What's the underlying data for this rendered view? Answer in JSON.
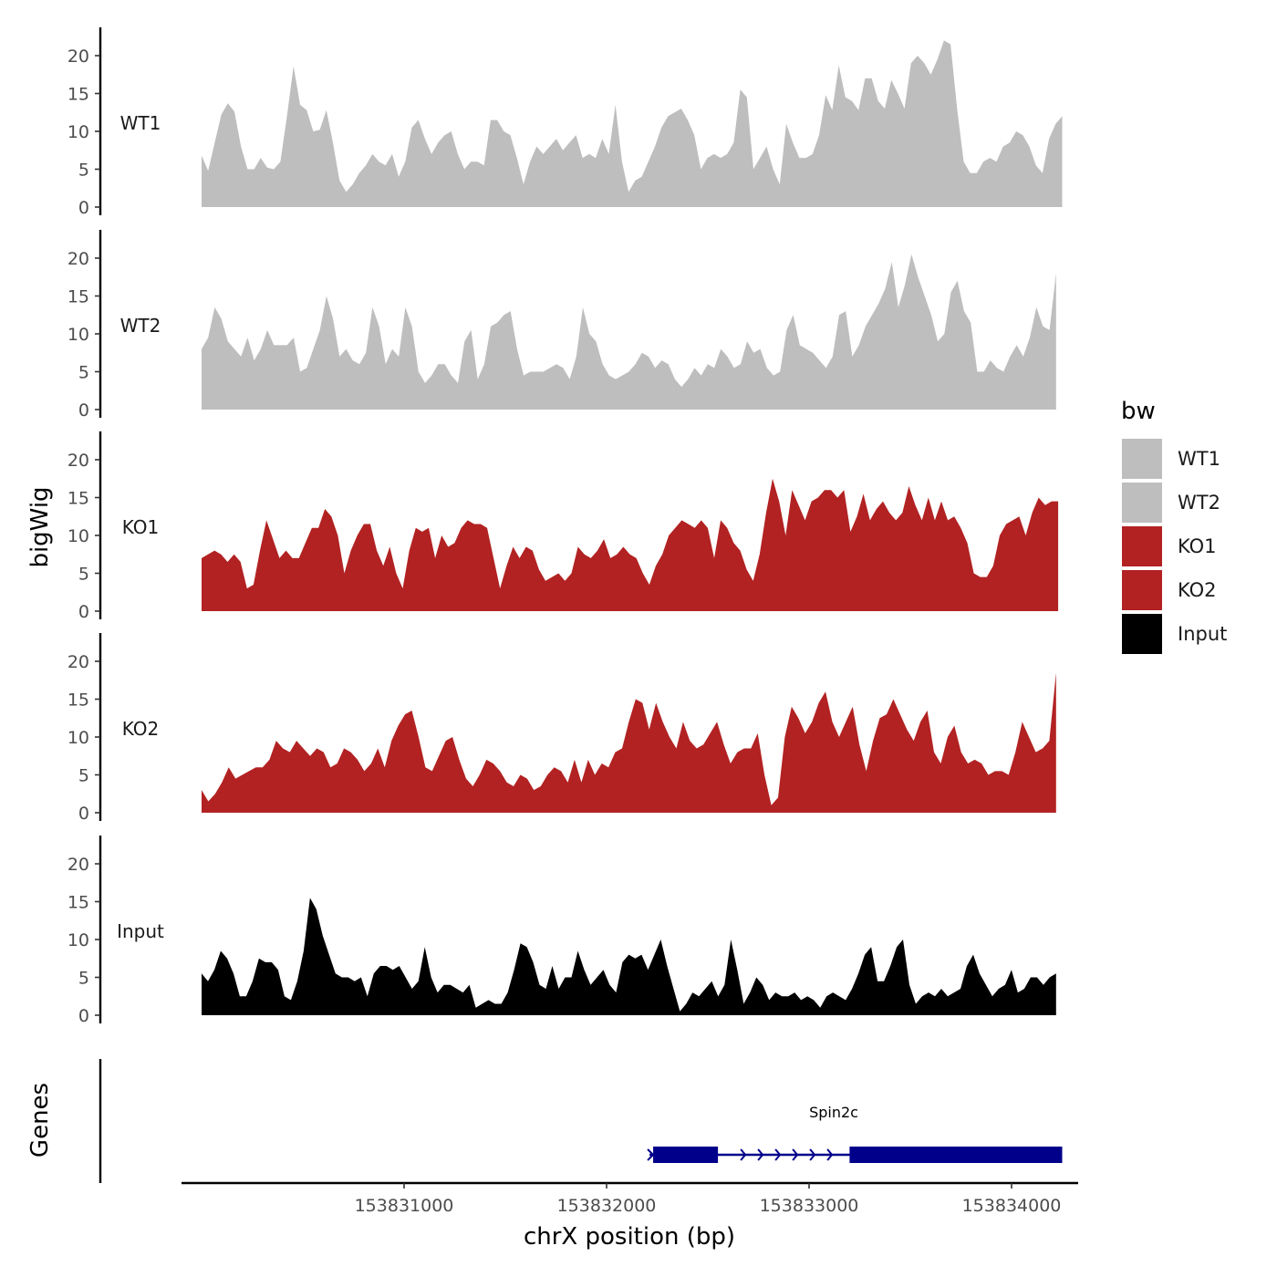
{
  "chart_data": {
    "type": "area",
    "facets": "stacked genome tracks",
    "y_axis_title": "bigWig",
    "x_axis_title": "chrX position (bp)",
    "x_range": [
      153829800,
      153834300
    ],
    "x_ticks": [
      153831000,
      153832000,
      153833000,
      153834000
    ],
    "x_tick_labels": [
      "153831000",
      "153832000",
      "153833000",
      "153834000"
    ],
    "ylim": [
      0,
      24
    ],
    "y_ticks": [
      0,
      5,
      10,
      15,
      20
    ],
    "y_tick_labels": [
      "0",
      "5",
      "10",
      "15",
      "20"
    ],
    "legend": {
      "title": "bw",
      "entries": [
        {
          "label": "WT1",
          "color": "#bebebe"
        },
        {
          "label": "WT2",
          "color": "#bebebe"
        },
        {
          "label": "KO1",
          "color": "#b22222"
        },
        {
          "label": "KO2",
          "color": "#b22222"
        },
        {
          "label": "Input",
          "color": "#000000"
        }
      ]
    },
    "series": [
      {
        "name": "WT1",
        "color": "#bebebe",
        "x_start": 153830000,
        "x_end": 153834250,
        "values": [
          6.8,
          4.8,
          8.5,
          12.2,
          13.7,
          12.6,
          8.0,
          5.0,
          5.0,
          6.5,
          5.2,
          5.0,
          6.0,
          12.0,
          18.6,
          13.5,
          12.8,
          10.0,
          10.2,
          12.8,
          8.5,
          3.5,
          2.0,
          3.0,
          4.5,
          5.5,
          7.0,
          6.0,
          5.5,
          7.0,
          4.0,
          6.0,
          10.5,
          11.5,
          9.0,
          7.0,
          8.5,
          9.5,
          10.0,
          7.0,
          5.0,
          6.0,
          6.0,
          5.5,
          11.5,
          11.5,
          10.0,
          9.5,
          6.5,
          3.0,
          6.0,
          8.0,
          7.0,
          8.0,
          9.0,
          7.5,
          8.5,
          9.5,
          6.5,
          7.0,
          6.5,
          9.0,
          7.0,
          13.5,
          6.0,
          2.0,
          3.5,
          4.0,
          6.0,
          8.0,
          10.5,
          12.0,
          12.5,
          13.0,
          11.5,
          9.5,
          5.0,
          6.5,
          7.0,
          6.5,
          7.0,
          8.5,
          15.5,
          14.5,
          5.0,
          6.5,
          8.0,
          5.0,
          3.0,
          11.0,
          8.5,
          6.5,
          6.5,
          7.0,
          9.5,
          14.8,
          12.8,
          18.7,
          14.5,
          14.0,
          12.8,
          17.0,
          17.0,
          14.0,
          13.0,
          16.8,
          15.0,
          13.0,
          19.0,
          20.0,
          19.0,
          17.5,
          19.5,
          22.0,
          21.5,
          13.0,
          6.0,
          4.5,
          4.5,
          6.0,
          6.5,
          6.0,
          8.0,
          8.5,
          10.0,
          9.5,
          8.0,
          5.5,
          4.5,
          9.0,
          11.0,
          12.0
        ]
      },
      {
        "name": "WT2",
        "color": "#bebebe",
        "x_start": 153830000,
        "x_end": 153834220,
        "values": [
          8.0,
          9.5,
          13.5,
          12.0,
          9.0,
          8.0,
          7.0,
          9.5,
          6.5,
          8.0,
          10.5,
          8.5,
          8.5,
          8.5,
          9.5,
          5.0,
          5.5,
          8.0,
          10.5,
          15.0,
          12.0,
          7.0,
          8.0,
          6.5,
          6.0,
          7.5,
          13.5,
          11.0,
          6.0,
          8.0,
          7.0,
          13.5,
          11.0,
          5.0,
          3.5,
          4.5,
          6.0,
          6.0,
          4.5,
          3.5,
          9.0,
          10.5,
          4.0,
          6.0,
          11.0,
          11.5,
          12.5,
          13.0,
          8.0,
          4.5,
          5.0,
          5.0,
          5.0,
          5.5,
          6.0,
          5.5,
          4.0,
          7.0,
          13.5,
          10.0,
          9.0,
          6.0,
          4.5,
          4.0,
          4.5,
          5.0,
          6.0,
          7.5,
          7.0,
          5.5,
          6.5,
          6.0,
          4.0,
          3.0,
          4.0,
          5.5,
          4.5,
          6.0,
          5.5,
          8.0,
          7.0,
          5.5,
          6.0,
          9.0,
          7.5,
          8.0,
          5.5,
          4.5,
          5.0,
          10.5,
          12.5,
          8.5,
          8.0,
          7.5,
          6.5,
          5.5,
          7.0,
          12.5,
          13.0,
          7.0,
          8.5,
          11.0,
          12.5,
          14.0,
          16.0,
          19.5,
          13.5,
          16.5,
          20.5,
          17.5,
          15.0,
          12.5,
          9.0,
          10.0,
          15.5,
          17.0,
          13.0,
          11.5,
          5.0,
          5.0,
          6.5,
          5.5,
          5.0,
          7.0,
          8.5,
          7.0,
          9.5,
          13.5,
          11.0,
          10.5,
          18.0
        ]
      },
      {
        "name": "KO1",
        "color": "#b22222",
        "x_start": 153830000,
        "x_end": 153834230,
        "values": [
          7.0,
          7.5,
          8.0,
          7.5,
          6.5,
          7.5,
          6.5,
          3.0,
          3.5,
          8.0,
          12.0,
          9.5,
          7.0,
          8.0,
          7.0,
          7.0,
          9.0,
          11.0,
          11.0,
          13.5,
          12.5,
          10.0,
          5.0,
          8.0,
          10.0,
          11.5,
          11.5,
          8.0,
          6.0,
          8.5,
          5.0,
          3.0,
          8.0,
          11.0,
          10.5,
          11.0,
          7.0,
          10.0,
          8.5,
          9.0,
          11.0,
          12.0,
          11.5,
          11.5,
          11.0,
          7.0,
          3.0,
          6.0,
          8.5,
          7.0,
          8.5,
          8.0,
          5.5,
          4.0,
          4.5,
          5.0,
          4.0,
          5.0,
          8.5,
          7.5,
          7.0,
          8.0,
          9.5,
          7.0,
          7.5,
          8.5,
          7.5,
          7.0,
          5.0,
          3.5,
          6.0,
          7.5,
          10.0,
          11.0,
          12.0,
          11.5,
          11.0,
          12.0,
          11.0,
          7.0,
          12.0,
          11.0,
          9.0,
          8.0,
          5.5,
          4.0,
          7.5,
          13.0,
          17.5,
          14.5,
          10.0,
          16.0,
          14.0,
          12.0,
          14.5,
          15.0,
          16.0,
          16.0,
          15.0,
          16.0,
          10.5,
          12.5,
          15.5,
          12.0,
          13.5,
          14.5,
          13.0,
          12.0,
          13.0,
          16.5,
          14.0,
          12.0,
          15.0,
          12.0,
          14.5,
          12.0,
          12.5,
          11.0,
          9.0,
          5.0,
          4.5,
          4.5,
          6.0,
          10.0,
          11.5,
          12.0,
          12.5,
          10.0,
          13.0,
          15.0,
          14.0,
          14.5,
          14.5
        ]
      },
      {
        "name": "KO2",
        "color": "#b22222",
        "x_start": 153830000,
        "x_end": 153834220,
        "values": [
          3.0,
          1.5,
          2.5,
          4.0,
          6.0,
          4.5,
          5.0,
          5.5,
          6.0,
          6.0,
          7.0,
          9.5,
          8.5,
          8.0,
          9.5,
          8.5,
          7.5,
          8.5,
          8.0,
          6.0,
          6.5,
          8.5,
          8.0,
          7.0,
          5.5,
          6.5,
          8.5,
          6.0,
          9.5,
          11.5,
          13.0,
          13.5,
          10.0,
          6.0,
          5.5,
          7.5,
          9.5,
          10.0,
          7.0,
          4.5,
          3.5,
          5.0,
          7.0,
          6.5,
          5.5,
          4.0,
          3.5,
          5.0,
          4.5,
          3.0,
          3.5,
          5.0,
          6.0,
          5.5,
          4.0,
          7.0,
          4.0,
          7.0,
          5.0,
          6.5,
          6.0,
          8.0,
          8.5,
          12.0,
          15.0,
          14.5,
          11.0,
          14.5,
          12.0,
          10.0,
          8.5,
          12.0,
          9.5,
          8.5,
          9.0,
          10.5,
          12.0,
          9.0,
          6.5,
          8.0,
          8.5,
          8.5,
          10.5,
          5.0,
          1.0,
          2.0,
          10.0,
          14.0,
          12.5,
          10.5,
          12.0,
          14.5,
          16.0,
          12.0,
          10.0,
          12.0,
          14.0,
          9.0,
          5.5,
          9.5,
          12.5,
          13.0,
          15.0,
          13.0,
          11.0,
          9.5,
          12.0,
          13.5,
          8.0,
          6.5,
          10.0,
          11.5,
          8.0,
          6.5,
          7.0,
          6.5,
          5.0,
          5.5,
          5.5,
          5.0,
          8.0,
          12.0,
          10.0,
          8.0,
          8.5,
          9.5,
          18.5
        ]
      },
      {
        "name": "Input",
        "color": "#000000",
        "x_start": 153830000,
        "x_end": 153834220,
        "values": [
          5.5,
          4.5,
          6.0,
          8.5,
          7.5,
          5.5,
          2.5,
          2.5,
          4.5,
          7.5,
          7.0,
          7.0,
          6.0,
          2.5,
          2.0,
          4.5,
          8.5,
          15.5,
          14.0,
          10.5,
          8.0,
          5.5,
          5.0,
          5.0,
          4.5,
          5.0,
          2.5,
          5.5,
          6.5,
          6.5,
          6.0,
          6.5,
          5.0,
          3.5,
          4.5,
          9.0,
          5.0,
          3.0,
          4.0,
          4.0,
          3.5,
          3.0,
          4.0,
          1.0,
          1.5,
          2.0,
          1.5,
          1.5,
          3.0,
          6.0,
          9.5,
          9.0,
          7.0,
          4.0,
          3.5,
          6.5,
          3.5,
          5.0,
          5.0,
          8.5,
          6.0,
          4.0,
          5.0,
          6.0,
          4.0,
          3.0,
          7.0,
          8.0,
          7.5,
          8.0,
          6.0,
          8.0,
          10.0,
          6.5,
          3.5,
          0.5,
          1.5,
          3.0,
          2.5,
          3.5,
          4.5,
          2.5,
          4.0,
          10.0,
          6.0,
          1.5,
          3.0,
          5.0,
          4.0,
          2.0,
          3.0,
          2.5,
          2.5,
          3.0,
          2.0,
          2.5,
          2.0,
          1.0,
          2.5,
          3.0,
          2.5,
          2.0,
          3.5,
          5.5,
          8.0,
          9.0,
          4.5,
          4.5,
          6.5,
          9.0,
          10.0,
          4.0,
          1.5,
          2.5,
          3.0,
          2.5,
          3.5,
          2.5,
          3.0,
          3.5,
          6.5,
          8.0,
          5.5,
          4.0,
          2.5,
          3.5,
          4.0,
          6.0,
          3.0,
          3.5,
          5.0,
          5.0,
          4.0,
          5.0,
          5.5
        ]
      }
    ],
    "gene_track": {
      "title": "Genes",
      "gene_name": "Spin2c",
      "strand": "+",
      "gene_start": 153832230,
      "gene_end": 153834250,
      "exons": [
        {
          "start": 153832230,
          "end": 153832550
        },
        {
          "start": 153833200,
          "end": 153834250
        }
      ]
    }
  }
}
